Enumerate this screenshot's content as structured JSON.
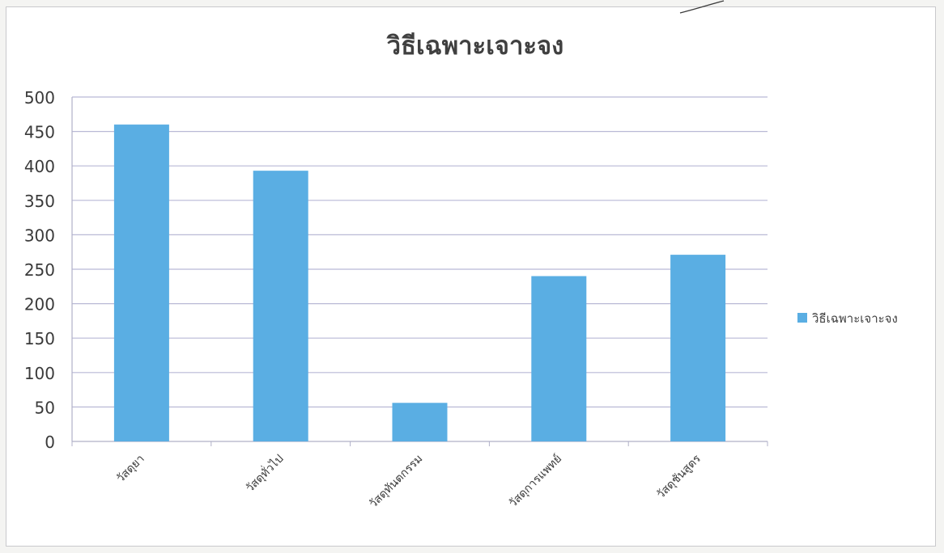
{
  "chart_data": {
    "type": "bar",
    "title": "วิธีเฉพาะเจาะจง",
    "categories": [
      "วัสดุยา",
      "วัสดุทั่วไป",
      "วัสดุทันตกรรม",
      "วัสดุการแพทย์",
      "วัสดุชันสูตร"
    ],
    "series": [
      {
        "name": "วิธีเฉพาะเจาะจง",
        "values": [
          460,
          393,
          56,
          240,
          271
        ],
        "color": "#5aaee3"
      }
    ],
    "ylim": [
      0,
      500
    ],
    "yticks": [
      "0",
      "50",
      "100",
      "150",
      "200",
      "250",
      "300",
      "350",
      "400",
      "450",
      "500"
    ],
    "grid": true,
    "legend": "right",
    "xlabel": "",
    "ylabel": ""
  }
}
